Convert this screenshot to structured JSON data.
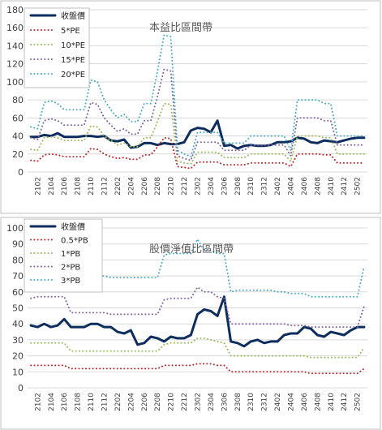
{
  "chart_data": [
    {
      "type": "line",
      "title": "本益比區間帶",
      "xlabel": "",
      "ylabel": "",
      "ylim": [
        0,
        180
      ],
      "yticks": [
        0,
        20,
        40,
        60,
        80,
        100,
        120,
        140,
        160,
        180
      ],
      "grid": true,
      "legend_position": "top-left",
      "x": [
        "2101",
        "2102",
        "2103",
        "2104",
        "2105",
        "2106",
        "2107",
        "2108",
        "2109",
        "2110",
        "2111",
        "2112",
        "2201",
        "2202",
        "2203",
        "2204",
        "2205",
        "2206",
        "2207",
        "2208",
        "2209",
        "2210",
        "2211",
        "2212",
        "2301",
        "2302",
        "2303",
        "2304",
        "2305",
        "2306",
        "2307",
        "2308",
        "2309",
        "2310",
        "2311",
        "2312",
        "2401",
        "2402",
        "2403",
        "2404",
        "2405",
        "2406",
        "2407",
        "2408",
        "2409",
        "2410",
        "2411",
        "2412",
        "2501",
        "2502",
        "2503"
      ],
      "xtick_labels": [
        "2102",
        "2104",
        "2106",
        "2108",
        "2110",
        "2112",
        "2202",
        "2204",
        "2206",
        "2208",
        "2210",
        "2212",
        "2302",
        "2304",
        "2306",
        "2308",
        "2310",
        "2312",
        "2402",
        "2404",
        "2406",
        "2408",
        "2410",
        "2412",
        "2502"
      ],
      "series": [
        {
          "name": "收盤價",
          "color": "#0c2d5e",
          "dash": "solid",
          "width": 3,
          "values": [
            39,
            39,
            41,
            40,
            43,
            39,
            39,
            39,
            40,
            40,
            39,
            40,
            35,
            34,
            36,
            27,
            28,
            32,
            32,
            30,
            32,
            31,
            31,
            33,
            46,
            49,
            48,
            44,
            57,
            29,
            30,
            26,
            29,
            30,
            29,
            29,
            30,
            33,
            33,
            34,
            38,
            37,
            33,
            32,
            35,
            34,
            33,
            35,
            37,
            38,
            38
          ]
        },
        {
          "name": "5*PE",
          "color": "#c0282d",
          "dash": "dot",
          "width": 2,
          "values": [
            13,
            12,
            19,
            20,
            19,
            17,
            17,
            17,
            17,
            26,
            25,
            20,
            17,
            15,
            16,
            14,
            14,
            19,
            19,
            28,
            38,
            37,
            6,
            5,
            4,
            11,
            11,
            11,
            11,
            8,
            8,
            8,
            8,
            10,
            10,
            10,
            10,
            10,
            10,
            6,
            20,
            20,
            20,
            20,
            19,
            19,
            10,
            10,
            10,
            10,
            10
          ]
        },
        {
          "name": "10*PE",
          "color": "#9bbb59",
          "dash": "dot",
          "width": 2,
          "values": [
            25,
            24,
            38,
            39,
            38,
            35,
            35,
            35,
            35,
            51,
            50,
            40,
            35,
            30,
            32,
            28,
            28,
            38,
            38,
            56,
            76,
            75,
            12,
            10,
            9,
            22,
            22,
            22,
            22,
            16,
            16,
            16,
            16,
            20,
            20,
            20,
            20,
            20,
            20,
            12,
            40,
            40,
            40,
            40,
            38,
            38,
            20,
            20,
            20,
            20,
            20
          ]
        },
        {
          "name": "15*PE",
          "color": "#8064a2",
          "dash": "dot",
          "width": 2,
          "values": [
            38,
            36,
            57,
            59,
            57,
            52,
            52,
            52,
            52,
            77,
            75,
            60,
            52,
            45,
            48,
            42,
            42,
            57,
            57,
            84,
            114,
            112,
            18,
            15,
            13,
            33,
            33,
            33,
            33,
            24,
            24,
            24,
            24,
            30,
            30,
            30,
            30,
            30,
            30,
            18,
            60,
            60,
            60,
            60,
            57,
            57,
            30,
            30,
            30,
            30,
            30
          ]
        },
        {
          "name": "20*PE",
          "color": "#4bacc6",
          "dash": "dot",
          "width": 2,
          "values": [
            50,
            48,
            77,
            79,
            76,
            69,
            69,
            69,
            69,
            102,
            100,
            80,
            69,
            60,
            64,
            56,
            56,
            76,
            76,
            112,
            152,
            150,
            24,
            20,
            17,
            44,
            44,
            44,
            44,
            32,
            32,
            32,
            32,
            40,
            40,
            40,
            40,
            40,
            40,
            24,
            80,
            80,
            80,
            80,
            76,
            76,
            40,
            40,
            40,
            40,
            40
          ]
        }
      ]
    },
    {
      "type": "line",
      "title": "股價淨值比區間帶",
      "xlabel": "",
      "ylabel": "",
      "ylim": [
        0,
        100
      ],
      "yticks": [
        0,
        10,
        20,
        30,
        40,
        50,
        60,
        70,
        80,
        90,
        100
      ],
      "grid": true,
      "legend_position": "top-left",
      "x": [
        "2101",
        "2102",
        "2103",
        "2104",
        "2105",
        "2106",
        "2107",
        "2108",
        "2109",
        "2110",
        "2111",
        "2112",
        "2201",
        "2202",
        "2203",
        "2204",
        "2205",
        "2206",
        "2207",
        "2208",
        "2209",
        "2210",
        "2211",
        "2212",
        "2301",
        "2302",
        "2303",
        "2304",
        "2305",
        "2306",
        "2307",
        "2308",
        "2309",
        "2310",
        "2311",
        "2312",
        "2401",
        "2402",
        "2403",
        "2404",
        "2405",
        "2406",
        "2407",
        "2408",
        "2409",
        "2410",
        "2411",
        "2412",
        "2501",
        "2502",
        "2503"
      ],
      "xtick_labels": [
        "2102",
        "2104",
        "2106",
        "2108",
        "2110",
        "2112",
        "2202",
        "2204",
        "2206",
        "2208",
        "2210",
        "2212",
        "2302",
        "2304",
        "2306",
        "2308",
        "2310",
        "2312",
        "2402",
        "2404",
        "2406",
        "2408",
        "2410",
        "2412",
        "2502"
      ],
      "series": [
        {
          "name": "收盤價",
          "color": "#0c2d5e",
          "dash": "solid",
          "width": 3,
          "values": [
            39,
            38,
            40,
            38,
            39,
            43,
            38,
            38,
            38,
            40,
            40,
            38,
            38,
            35,
            34,
            36,
            27,
            28,
            32,
            31,
            29,
            32,
            31,
            31,
            33,
            46,
            49,
            48,
            45,
            57,
            29,
            28,
            26,
            29,
            30,
            28,
            29,
            29,
            33,
            34,
            34,
            38,
            37,
            33,
            32,
            35,
            34,
            33,
            36,
            38,
            38
          ]
        },
        {
          "name": "0.5*PB",
          "color": "#c0282d",
          "dash": "dot",
          "width": 2,
          "values": [
            14,
            14,
            14,
            14,
            14,
            14,
            12,
            12,
            12,
            12,
            12,
            12,
            12,
            12,
            12,
            12,
            12,
            12,
            12,
            12,
            14,
            14,
            14,
            14,
            14,
            15,
            15,
            15,
            14,
            14,
            10,
            10,
            10,
            10,
            10,
            10,
            10,
            10,
            10,
            10,
            10,
            10,
            9,
            9,
            9,
            9,
            9,
            9,
            9,
            9,
            12
          ]
        },
        {
          "name": "1*PB",
          "color": "#9bbb59",
          "dash": "dot",
          "width": 2,
          "values": [
            28,
            28,
            28,
            28,
            28,
            28,
            23,
            23,
            23,
            23,
            23,
            23,
            23,
            23,
            23,
            23,
            23,
            23,
            23,
            23,
            27,
            28,
            28,
            28,
            28,
            31,
            31,
            30,
            29,
            28,
            20,
            20,
            20,
            20,
            20,
            20,
            20,
            20,
            20,
            20,
            20,
            20,
            19,
            19,
            19,
            19,
            19,
            19,
            19,
            19,
            25
          ]
        },
        {
          "name": "2*PB",
          "color": "#8064a2",
          "dash": "dot",
          "width": 2,
          "values": [
            56,
            57,
            57,
            57,
            57,
            57,
            47,
            47,
            47,
            47,
            47,
            47,
            46,
            46,
            46,
            46,
            46,
            46,
            46,
            46,
            55,
            56,
            56,
            56,
            56,
            63,
            60,
            60,
            57,
            56,
            40,
            40,
            40,
            40,
            40,
            40,
            40,
            40,
            40,
            39,
            39,
            39,
            38,
            38,
            38,
            38,
            38,
            38,
            38,
            38,
            51
          ]
        },
        {
          "name": "3*PB",
          "color": "#4bacc6",
          "dash": "dot",
          "width": 2,
          "values": [
            84,
            85,
            85,
            85,
            85,
            85,
            70,
            70,
            70,
            70,
            70,
            70,
            69,
            69,
            69,
            69,
            69,
            69,
            69,
            69,
            83,
            84,
            84,
            84,
            84,
            93,
            86,
            86,
            84,
            84,
            60,
            61,
            61,
            61,
            61,
            61,
            61,
            60,
            60,
            59,
            59,
            59,
            57,
            57,
            57,
            57,
            57,
            57,
            57,
            57,
            76
          ]
        }
      ]
    }
  ]
}
